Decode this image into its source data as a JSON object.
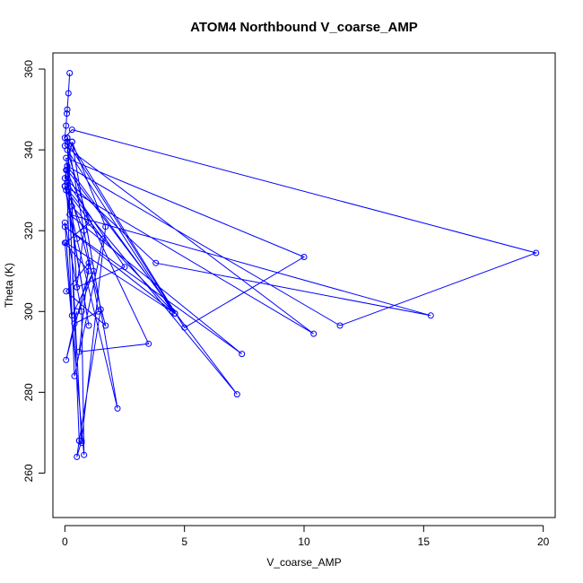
{
  "chart_data": {
    "type": "line",
    "title": "ATOM4 Northbound V_coarse_AMP",
    "xlabel": "V_coarse_AMP",
    "ylabel": "Theta (K)",
    "xlim": [
      -0.5,
      20.5
    ],
    "ylim": [
      249,
      364
    ],
    "xticks": [
      0,
      5,
      10,
      15,
      20
    ],
    "yticks": [
      260,
      280,
      300,
      320,
      340,
      360
    ],
    "markers": "open-circle",
    "grid": false,
    "legend": "none",
    "color": "#0000ff",
    "series": [
      {
        "x": [
          0.2,
          0.15,
          0.1,
          0.08,
          0.05,
          0.0,
          0.3,
          19.7,
          11.5,
          0.1,
          0.0,
          10.4,
          0.0,
          0.1,
          5.0,
          10.0,
          0.05,
          0.1,
          7.2,
          0.0,
          0.5,
          2.2,
          0.3,
          0.0,
          3.8,
          15.3,
          0.2,
          7.4,
          0.0,
          4.5,
          0.1,
          1.0,
          0.05,
          4.6,
          0.1,
          0.6,
          0.5,
          0.7,
          1.7,
          0.3,
          1.5,
          0.6,
          0.7,
          0.1,
          4.6,
          0.3,
          0.5,
          2.5,
          0.1,
          1.7,
          0.05,
          1.0,
          0.6,
          3.5,
          0.05,
          0.4,
          1.6,
          0.05,
          1.0,
          0.0,
          0.8,
          0.5,
          0.1,
          1.4,
          0.4,
          1.2,
          0.3,
          0.0,
          0.7,
          0.8,
          0.0,
          1.0,
          0.05,
          0.5
        ],
        "y": [
          359,
          354,
          350,
          349,
          346,
          343,
          345,
          314.5,
          296.5,
          336,
          331,
          294.5,
          341,
          343,
          296,
          313.5,
          338,
          335,
          279.5,
          331,
          318,
          276,
          342,
          333,
          312,
          299,
          324,
          289.5,
          321,
          300,
          340,
          322,
          317,
          299.5,
          342,
          268,
          264,
          268,
          321,
          342,
          300.5,
          268,
          267.5,
          336,
          299.5,
          326,
          306,
          311,
          332,
          296.5,
          305,
          312,
          290,
          292,
          335,
          284,
          318,
          330,
          296.5,
          331,
          320,
          306,
          343,
          300,
          297,
          310,
          299,
          322,
          300,
          264.5,
          317,
          310,
          288,
          300
        ]
      }
    ]
  }
}
